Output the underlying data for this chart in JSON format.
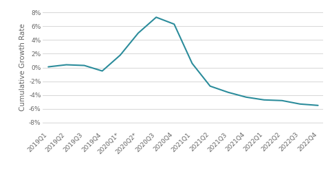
{
  "x_labels": [
    "2019Q1",
    "2019Q2",
    "2019Q3",
    "2019Q4",
    "2020Q1*",
    "2020Q2*",
    "2020Q3",
    "2020Q4",
    "2021Q1",
    "2021Q2",
    "2021Q3",
    "2021Q4",
    "2022Q1",
    "2022Q2",
    "2022Q3",
    "2022Q4"
  ],
  "values": [
    0.001,
    0.004,
    0.003,
    -0.005,
    0.018,
    0.05,
    0.073,
    0.063,
    0.006,
    -0.027,
    -0.036,
    -0.043,
    -0.047,
    -0.048,
    -0.053,
    -0.055
  ],
  "line_color": "#2b8c9b",
  "line_width": 1.5,
  "ylabel": "Cumulative Growth Rate",
  "ylim": [
    -0.09,
    0.09
  ],
  "yticks": [
    -0.08,
    -0.06,
    -0.04,
    -0.02,
    0.0,
    0.02,
    0.04,
    0.06,
    0.08
  ],
  "ytick_labels": [
    "-8%",
    "-6%",
    "-4%",
    "-2%",
    "0%",
    "2%",
    "4%",
    "6%",
    "8%"
  ],
  "plot_bg_color": "#ffffff",
  "grid_color": "#d0d0d0",
  "ylabel_fontsize": 7.5,
  "tick_fontsize": 6.5
}
